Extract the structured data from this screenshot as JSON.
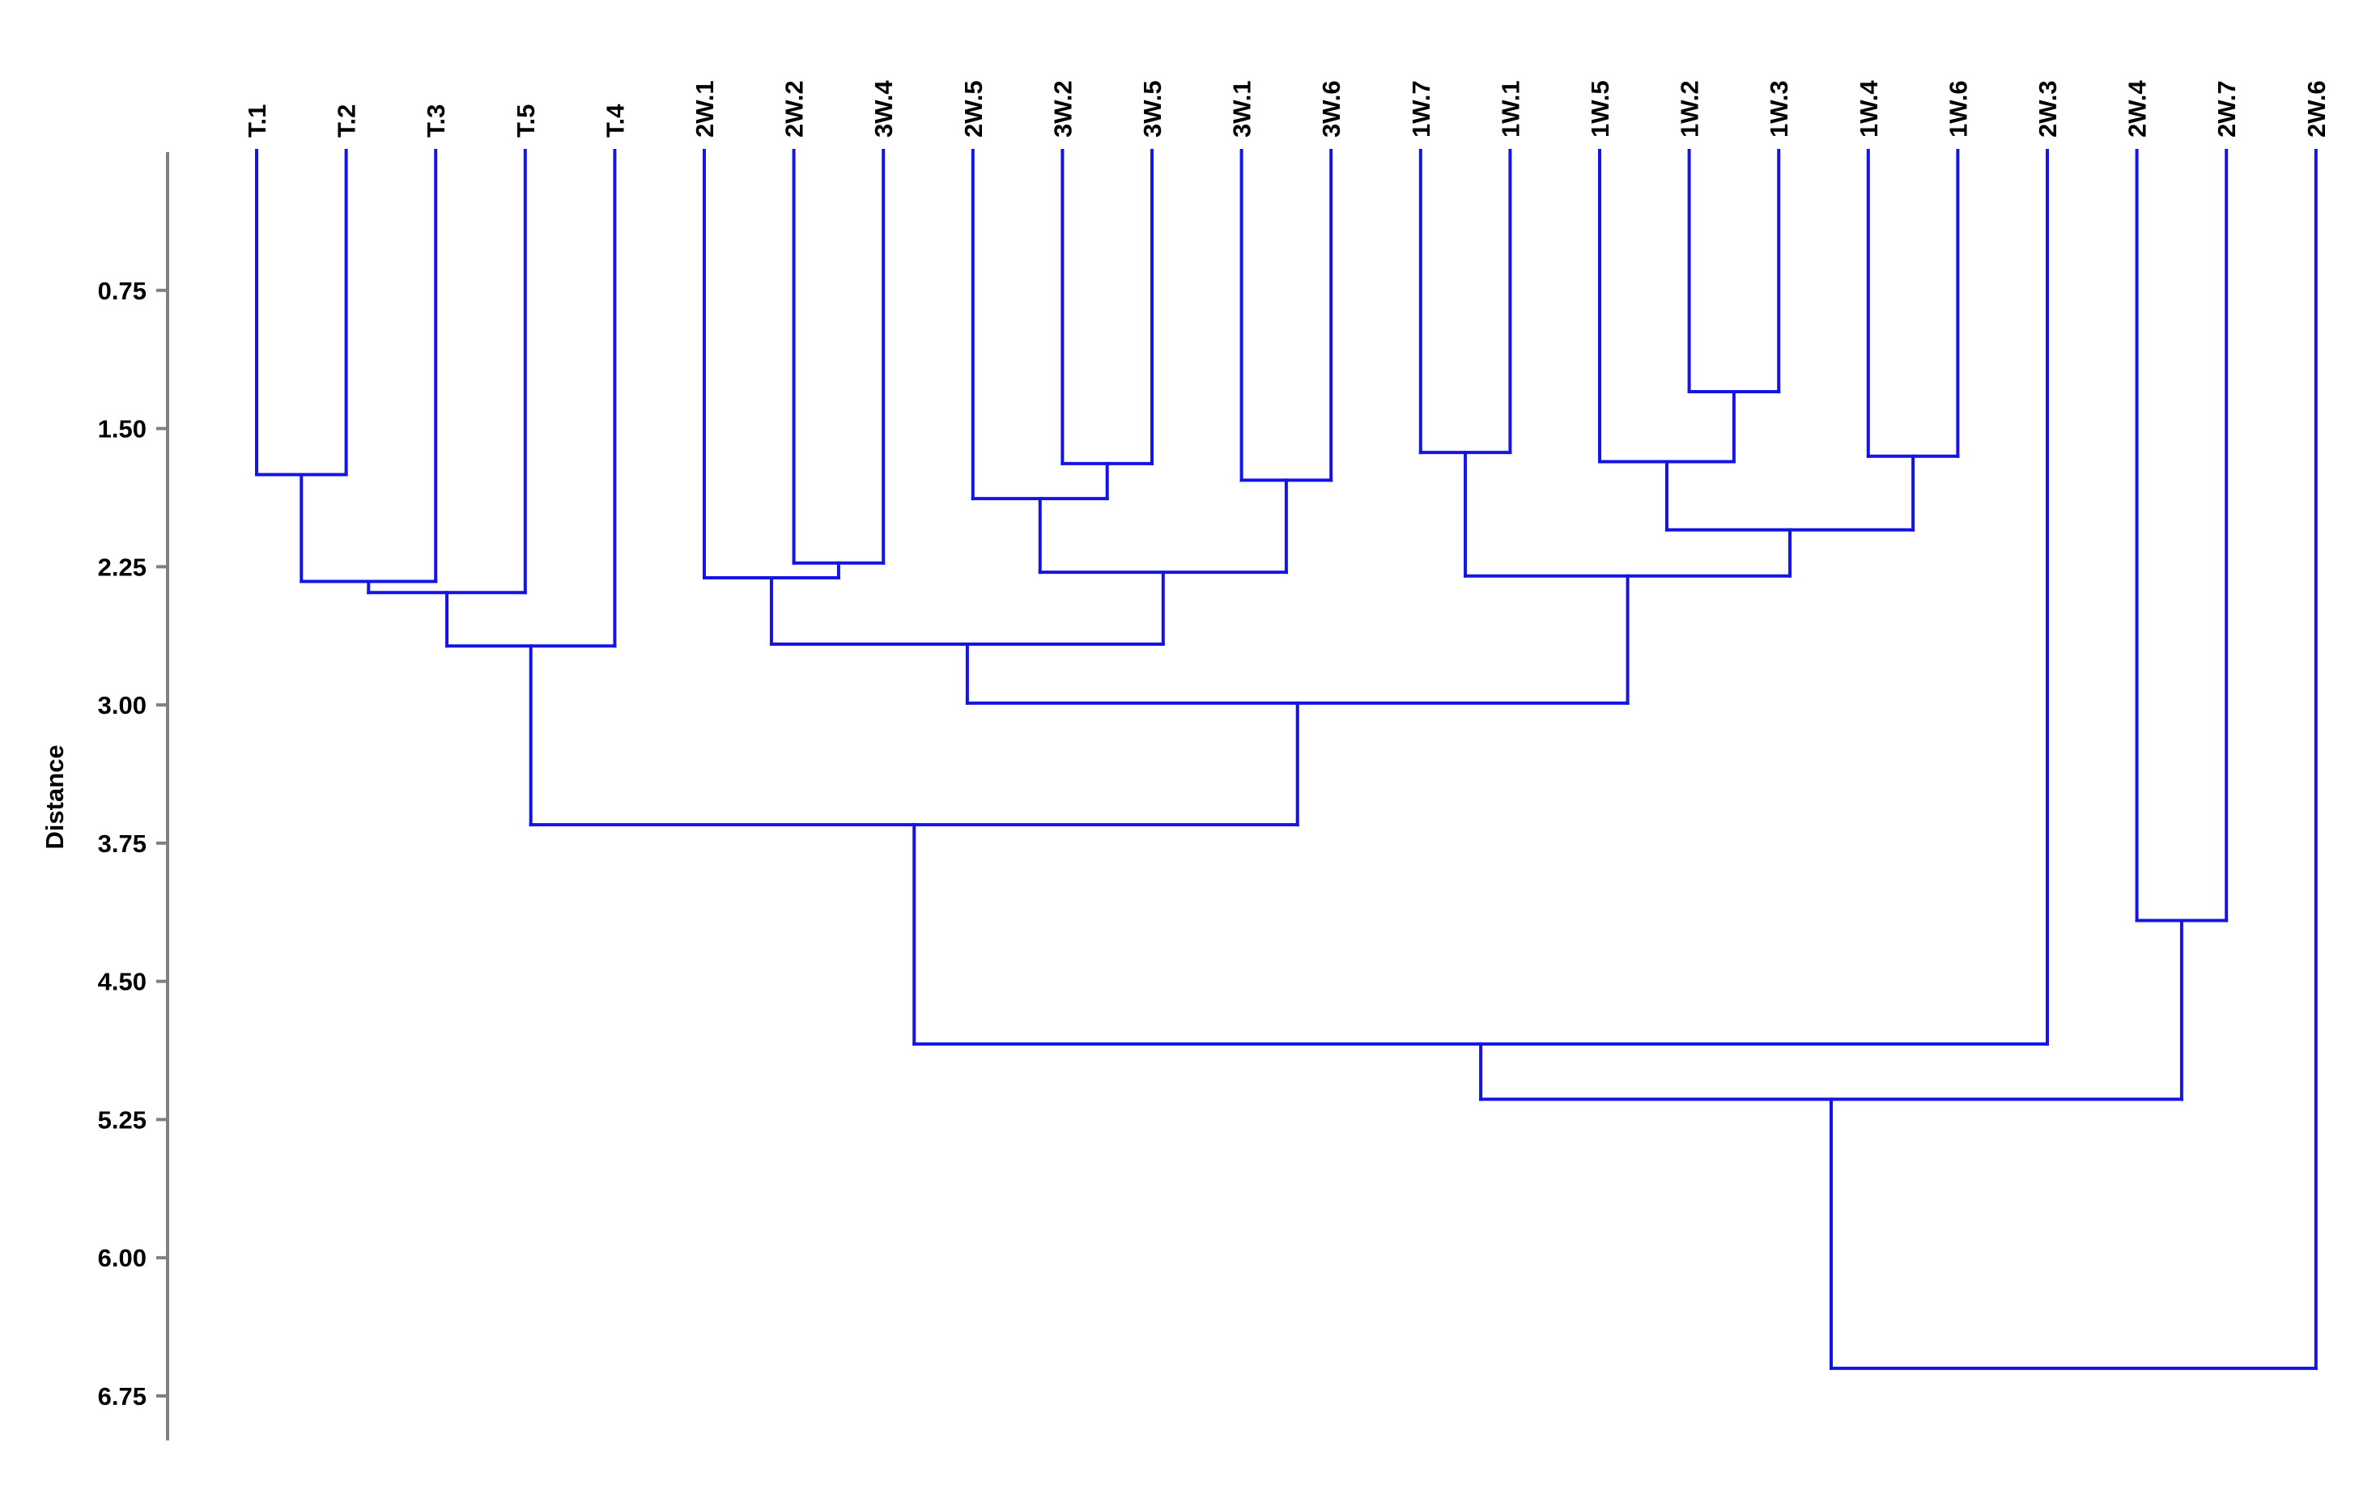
{
  "chart_data": {
    "type": "dendrogram",
    "ylabel": "Distance",
    "ylim": [
      0,
      7.0
    ],
    "y_reversed": true,
    "y_ticks": [
      "0.75",
      "1.50",
      "2.25",
      "3.00",
      "3.75",
      "4.50",
      "5.25",
      "6.00",
      "6.75"
    ],
    "leaves": [
      "T.1",
      "T.2",
      "T.3",
      "T.5",
      "T.4",
      "2W.1",
      "2W.2",
      "3W.4",
      "2W.5",
      "3W.2",
      "3W.5",
      "3W.1",
      "3W.6",
      "1W.7",
      "1W.1",
      "1W.5",
      "1W.2",
      "1W.3",
      "1W.4",
      "1W.6",
      "2W.3",
      "2W.4",
      "2W.7",
      "2W.6"
    ],
    "merges": [
      {
        "left": "1W.2",
        "right": "1W.3",
        "height": 1.3
      },
      {
        "left": "1W.7",
        "right": "1W.1",
        "height": 1.63
      },
      {
        "left": "1W.4",
        "right": "1W.6",
        "height": 1.65
      },
      {
        "left": "3W.2",
        "right": "3W.5",
        "height": 1.69
      },
      {
        "left": "1W.5",
        "right": "m1",
        "height": 1.68
      },
      {
        "left": "T.1",
        "right": "T.2",
        "height": 1.75
      },
      {
        "left": "3W.1",
        "right": "3W.6",
        "height": 1.78
      },
      {
        "left": "2W.5",
        "right": "m4",
        "height": 1.88
      },
      {
        "left": "m5",
        "right": "m3",
        "height": 2.05
      },
      {
        "left": "2W.2",
        "right": "3W.4",
        "height": 2.23
      },
      {
        "left": "m2",
        "right": "m9",
        "height": 2.3
      },
      {
        "left": "m8",
        "right": "m7",
        "height": 2.28
      },
      {
        "left": "2W.1",
        "right": "m10",
        "height": 2.31
      },
      {
        "left": "m6",
        "right": "T.3",
        "height": 2.33
      },
      {
        "left": "m14",
        "right": "T.5",
        "height": 2.39
      },
      {
        "left": "m15",
        "right": "T.4",
        "height": 2.68
      },
      {
        "left": "m13",
        "right": "m12",
        "height": 2.67
      },
      {
        "left": "m17",
        "right": "m11",
        "height": 2.99
      },
      {
        "left": "m16",
        "right": "m18",
        "height": 3.65
      },
      {
        "left": "2W.4",
        "right": "2W.7",
        "height": 4.17
      },
      {
        "left": "m19",
        "right": "2W.3",
        "height": 4.84
      },
      {
        "left": "m21",
        "right": "m20",
        "height": 5.14
      },
      {
        "left": "m22",
        "right": "2W.6",
        "height": 6.6
      }
    ],
    "line_color": "#1414e6",
    "axis_color": "#808080"
  }
}
